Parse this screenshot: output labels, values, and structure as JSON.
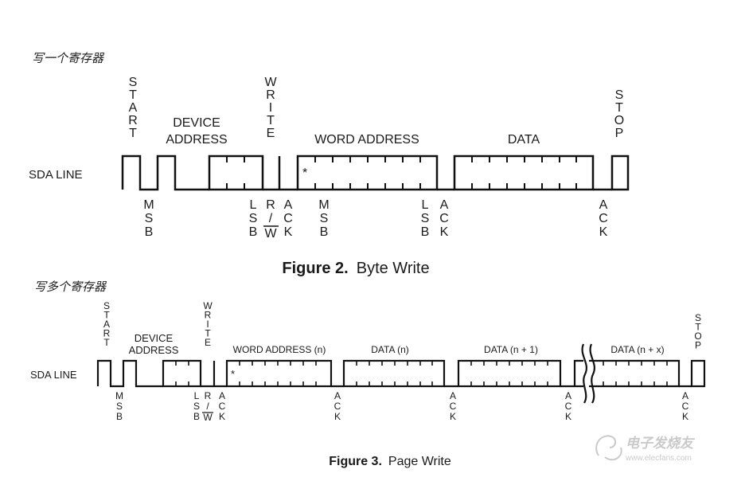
{
  "section_byte_write": {
    "heading": "写一个寄存器",
    "labels": {
      "start": "START",
      "device_address_line1": "DEVICE",
      "device_address_line2": "ADDRESS",
      "write": "WRITE",
      "word_address": "WORD ADDRESS",
      "data": "DATA",
      "stop": "STOP",
      "sda_line": "SDA LINE",
      "asterisk": "*"
    },
    "below_labels": {
      "msb_device": "MSB",
      "lsb_device": "LSB",
      "rw": "R/W",
      "ack_1": "ACK",
      "msb_word": "MSB",
      "lsb_word": "LSB",
      "ack_2": "ACK",
      "ack_3": "ACK"
    },
    "caption_bold": "Figure 2.",
    "caption_text": "Byte Write"
  },
  "section_page_write": {
    "heading": "写多个寄存器",
    "labels": {
      "start": "START",
      "device_address_line1": "DEVICE",
      "device_address_line2": "ADDRESS",
      "write": "WRITE",
      "word_address": "WORD ADDRESS (n)",
      "data_n": "DATA (n)",
      "data_n1": "DATA (n + 1)",
      "data_nx": "DATA (n + x)",
      "stop": "STOP",
      "sda_line": "SDA LINE",
      "asterisk": "*"
    },
    "below_labels": {
      "msb": "MSB",
      "lsb": "LSB",
      "rw": "R/W",
      "ack_1": "ACK",
      "ack_2": "ACK",
      "ack_3": "ACK",
      "ack_4": "ACK",
      "ack_5": "ACK"
    },
    "caption_bold": "Figure 3.",
    "caption_text": "Page Write"
  },
  "watermark": {
    "logo_text": "电子发烧友",
    "url": "www.elecfans.com"
  },
  "colors": {
    "line": "#111111",
    "text": "#1a1a1a",
    "watermark": "#b8b8b8"
  }
}
